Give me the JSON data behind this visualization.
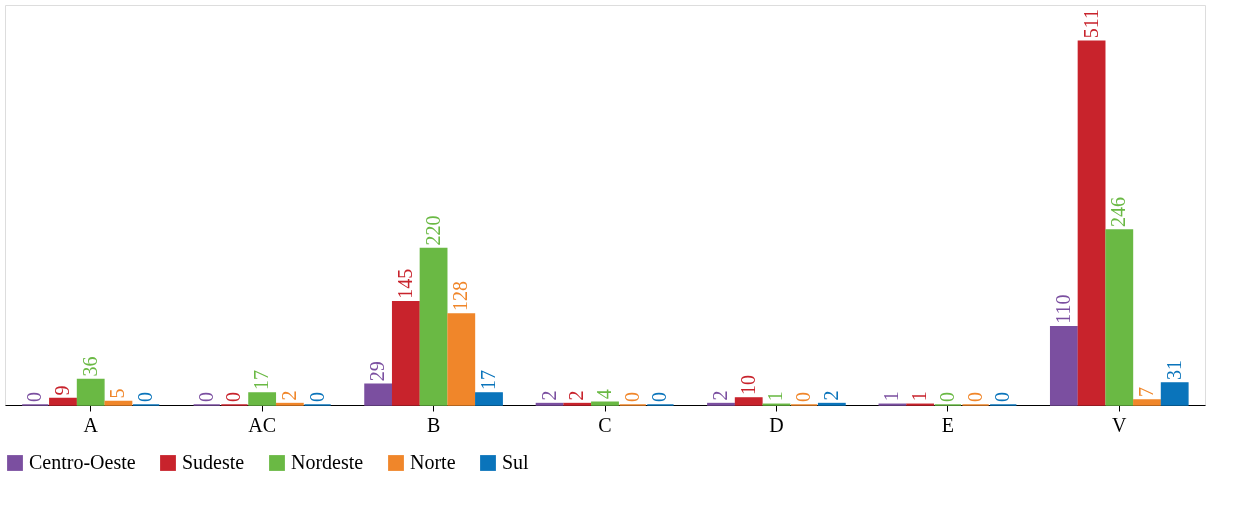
{
  "chart_data": {
    "type": "bar",
    "categories": [
      "A",
      "AC",
      "B",
      "C",
      "D",
      "E",
      "V"
    ],
    "series": [
      {
        "name": "Centro-Oeste",
        "color": "#7b4fa0",
        "values": [
          0,
          0,
          29,
          2,
          2,
          1,
          110
        ]
      },
      {
        "name": "Sudeste",
        "color": "#c8232c",
        "values": [
          9,
          0,
          145,
          2,
          10,
          1,
          511
        ]
      },
      {
        "name": "Nordeste",
        "color": "#6ab944",
        "values": [
          36,
          17,
          220,
          4,
          1,
          0,
          246
        ]
      },
      {
        "name": "Norte",
        "color": "#f0862a",
        "values": [
          5,
          2,
          128,
          0,
          0,
          0,
          7
        ]
      },
      {
        "name": "Sul",
        "color": "#0a74bb",
        "values": [
          0,
          0,
          17,
          0,
          2,
          0,
          31
        ]
      }
    ],
    "data_labels": true,
    "legend": "bottom",
    "grid": false
  }
}
